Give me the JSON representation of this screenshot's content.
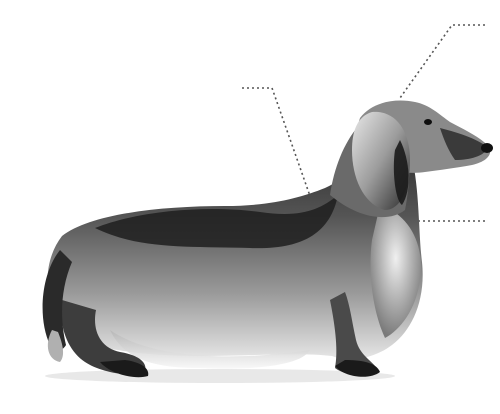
{
  "photo": {
    "subject": "long-haired-dachshund-silhouette",
    "background_color": "#ffffff",
    "tones": {
      "darkest": "#1b1b1b",
      "dark": "#3a3a3a",
      "mid": "#777777",
      "light": "#c9c9c9",
      "highlight": "#f2f2f2"
    },
    "callout_line_color": "#555555",
    "callouts": [
      {
        "name": "callout-head"
      },
      {
        "name": "callout-back"
      },
      {
        "name": "callout-chest"
      }
    ]
  }
}
